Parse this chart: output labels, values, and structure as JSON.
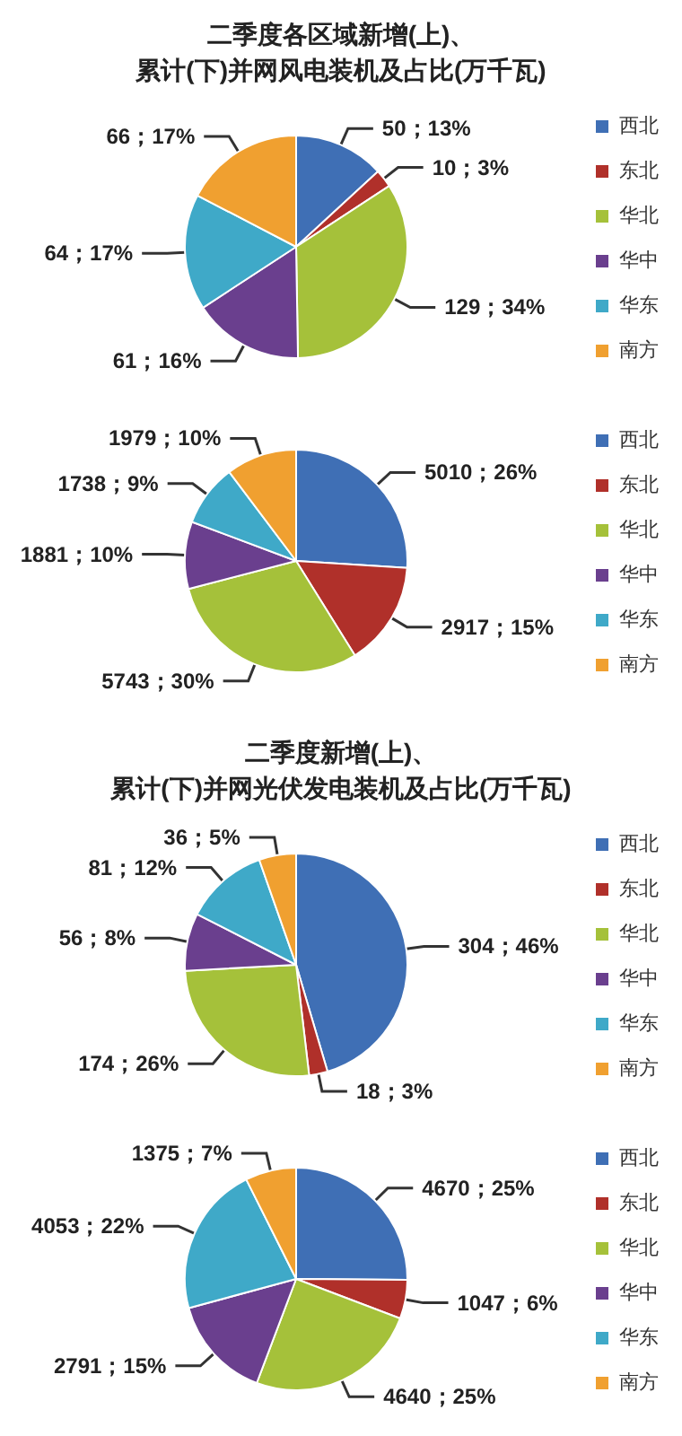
{
  "chart_data": [
    {
      "type": "pie",
      "title": "二季度各区域新增(上)、累计(下)并网风电装机及占比(万千瓦)",
      "categories": [
        "西北",
        "东北",
        "华北",
        "华中",
        "华东",
        "南方"
      ],
      "values": [
        50,
        10,
        129,
        61,
        64,
        66
      ],
      "value_labels": [
        "50；13%",
        "10；3%",
        "129；34%",
        "61；16%",
        "64；17%",
        "66；17%"
      ],
      "colors": [
        "#3f6fb5",
        "#b0302a",
        "#a5c13a",
        "#6a3f8e",
        "#3fa9c8",
        "#f0a030"
      ],
      "legend": "right"
    },
    {
      "type": "pie",
      "categories": [
        "西北",
        "东北",
        "华北",
        "华中",
        "华东",
        "南方"
      ],
      "values": [
        5010,
        2917,
        5743,
        1881,
        1738,
        1979
      ],
      "value_labels": [
        "5010；26%",
        "2917；15%",
        "5743；30%",
        "1881；10%",
        "1738；9%",
        "1979；10%"
      ],
      "colors": [
        "#3f6fb5",
        "#b0302a",
        "#a5c13a",
        "#6a3f8e",
        "#3fa9c8",
        "#f0a030"
      ],
      "legend": "right"
    },
    {
      "type": "pie",
      "title": "二季度新增(上)、累计(下)并网光伏发电装机及占比(万千瓦)",
      "categories": [
        "西北",
        "东北",
        "华北",
        "华中",
        "华东",
        "南方"
      ],
      "values": [
        304,
        18,
        174,
        56,
        81,
        36
      ],
      "value_labels": [
        "304；46%",
        "18；3%",
        "174；26%",
        "56；8%",
        "81；12%",
        "36；5%"
      ],
      "colors": [
        "#3f6fb5",
        "#b0302a",
        "#a5c13a",
        "#6a3f8e",
        "#3fa9c8",
        "#f0a030"
      ],
      "legend": "right"
    },
    {
      "type": "pie",
      "categories": [
        "西北",
        "东北",
        "华北",
        "华中",
        "华东",
        "南方"
      ],
      "values": [
        4670,
        1047,
        4640,
        2791,
        4053,
        1375
      ],
      "value_labels": [
        "4670；25%",
        "1047；6%",
        "4640；25%",
        "2791；15%",
        "4053；22%",
        "1375；7%"
      ],
      "colors": [
        "#3f6fb5",
        "#b0302a",
        "#a5c13a",
        "#6a3f8e",
        "#3fa9c8",
        "#f0a030"
      ],
      "legend": "right"
    }
  ]
}
